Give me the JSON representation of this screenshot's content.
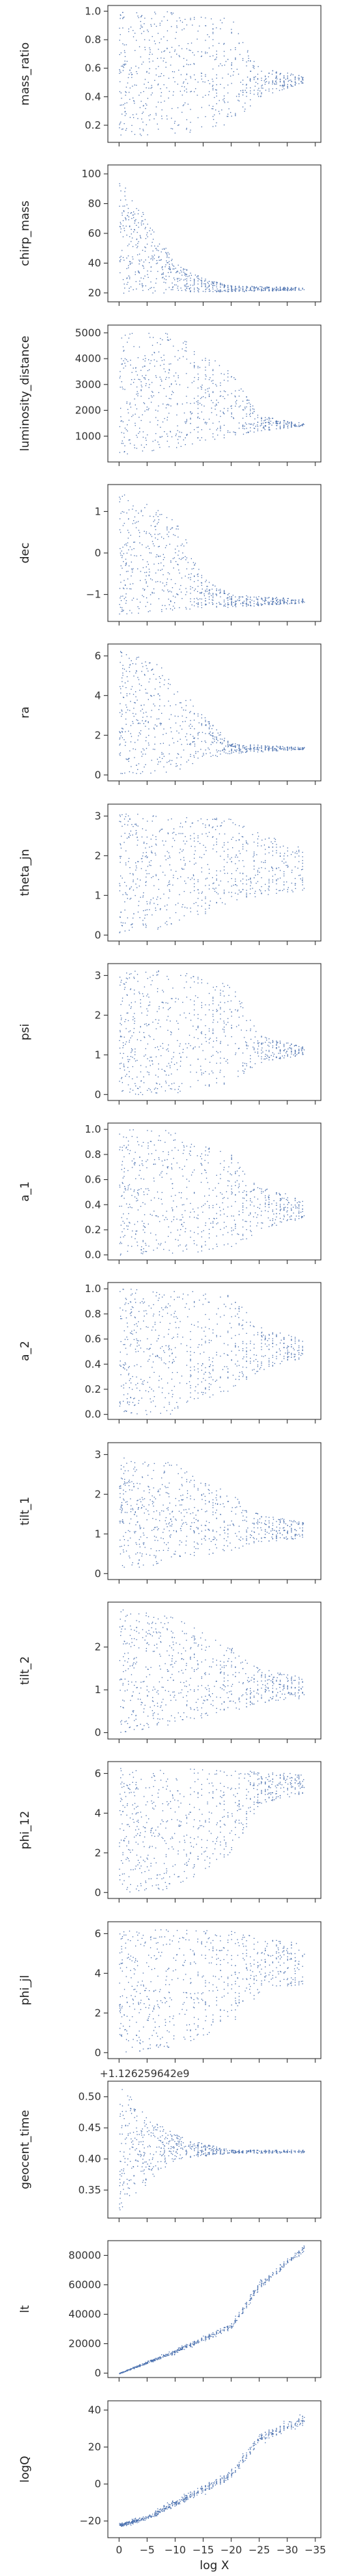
{
  "chart_data": {
    "type": "scatter",
    "shared_x": {
      "label": "log X",
      "ticks": [
        0,
        -5,
        -10,
        -15,
        -20,
        -25,
        -30,
        -35
      ],
      "tick_labels": [
        "0",
        "−5",
        "−10",
        "−15",
        "−20",
        "−25",
        "−30",
        "−35"
      ],
      "xlim": [
        2,
        -36
      ]
    },
    "marker_color": "#4c72b0",
    "axis_color": "#333333",
    "panels": [
      {
        "ylabel": "mass_ratio",
        "ticks": [
          0.2,
          0.4,
          0.6,
          0.8,
          1.0
        ],
        "tick_labels": [
          "0.2",
          "0.4",
          "0.6",
          "0.8",
          "1.0"
        ],
        "ylim": [
          0.08,
          1.04
        ],
        "trend": {
          "x": [
            0,
            -10,
            -20,
            -25,
            -33
          ],
          "lo": [
            0.12,
            0.13,
            0.2,
            0.4,
            0.5
          ],
          "hi": [
            1.0,
            1.0,
            0.95,
            0.6,
            0.55
          ]
        }
      },
      {
        "ylabel": "chirp_mass",
        "ticks": [
          20,
          40,
          60,
          80,
          100
        ],
        "tick_labels": [
          "20",
          "40",
          "60",
          "80",
          "100"
        ],
        "ylim": [
          14,
          106
        ],
        "trend": {
          "x": [
            0,
            -5,
            -10,
            -15,
            -20,
            -33
          ],
          "lo": [
            20,
            20,
            20,
            21,
            21,
            22
          ],
          "hi": [
            100,
            70,
            40,
            30,
            25,
            24
          ]
        }
      },
      {
        "ylabel": "luminosity_distance",
        "ticks": [
          1000,
          2000,
          3000,
          4000,
          5000
        ],
        "tick_labels": [
          "1000",
          "2000",
          "3000",
          "4000",
          "5000"
        ],
        "ylim": [
          0,
          5300
        ],
        "trend": {
          "x": [
            0,
            -10,
            -20,
            -25,
            -33
          ],
          "lo": [
            300,
            500,
            1000,
            1200,
            1400
          ],
          "hi": [
            5000,
            5000,
            3500,
            1800,
            1500
          ]
        }
      },
      {
        "ylabel": "dec",
        "ticks": [
          -1,
          0,
          1
        ],
        "tick_labels": [
          "−1",
          "0",
          "1"
        ],
        "ylim": [
          -1.65,
          1.65
        ],
        "trend": {
          "x": [
            0,
            -10,
            -15,
            -20,
            -33
          ],
          "lo": [
            -1.5,
            -1.4,
            -1.3,
            -1.3,
            -1.2
          ],
          "hi": [
            1.5,
            0.9,
            -0.6,
            -1.0,
            -1.1
          ]
        }
      },
      {
        "ylabel": "ra",
        "ticks": [
          0,
          2,
          4,
          6
        ],
        "tick_labels": [
          "0",
          "2",
          "4",
          "6"
        ],
        "ylim": [
          -0.3,
          6.6
        ],
        "trend": {
          "x": [
            0,
            -8,
            -15,
            -20,
            -33
          ],
          "lo": [
            0,
            0,
            0.8,
            1.1,
            1.3
          ],
          "hi": [
            6.3,
            5.5,
            3.0,
            1.6,
            1.4
          ]
        }
      },
      {
        "ylabel": "theta_jn",
        "ticks": [
          0,
          1,
          2,
          3
        ],
        "tick_labels": [
          "0",
          "1",
          "2",
          "3"
        ],
        "ylim": [
          -0.15,
          3.3
        ],
        "trend": {
          "x": [
            0,
            -10,
            -20,
            -25,
            -33
          ],
          "lo": [
            0.05,
            0.2,
            0.8,
            1.0,
            1.1
          ],
          "hi": [
            3.1,
            3.0,
            3.0,
            2.6,
            2.2
          ]
        }
      },
      {
        "ylabel": "psi",
        "ticks": [
          0,
          1,
          2,
          3
        ],
        "tick_labels": [
          "0",
          "1",
          "2",
          "3"
        ],
        "ylim": [
          -0.15,
          3.3
        ],
        "trend": {
          "x": [
            0,
            -10,
            -20,
            -25,
            -33
          ],
          "lo": [
            0,
            0,
            0.3,
            0.8,
            1.0
          ],
          "hi": [
            3.14,
            3.14,
            2.8,
            1.5,
            1.2
          ]
        }
      },
      {
        "ylabel": "a_1",
        "ticks": [
          0.0,
          0.2,
          0.4,
          0.6,
          0.8,
          1.0
        ],
        "tick_labels": [
          "0.0",
          "0.2",
          "0.4",
          "0.6",
          "0.8",
          "1.0"
        ],
        "ylim": [
          -0.04,
          1.05
        ],
        "trend": {
          "x": [
            0,
            -10,
            -20,
            -25,
            -33
          ],
          "lo": [
            0,
            0,
            0.05,
            0.2,
            0.3
          ],
          "hi": [
            1.0,
            1.0,
            0.8,
            0.55,
            0.45
          ]
        }
      },
      {
        "ylabel": "a_2",
        "ticks": [
          0.0,
          0.2,
          0.4,
          0.6,
          0.8,
          1.0
        ],
        "tick_labels": [
          "0.0",
          "0.2",
          "0.4",
          "0.6",
          "0.8",
          "1.0"
        ],
        "ylim": [
          -0.04,
          1.05
        ],
        "trend": {
          "x": [
            0,
            -10,
            -20,
            -25,
            -33
          ],
          "lo": [
            0,
            0,
            0.2,
            0.35,
            0.45
          ],
          "hi": [
            1.0,
            1.0,
            0.95,
            0.7,
            0.6
          ]
        }
      },
      {
        "ylabel": "tilt_1",
        "ticks": [
          0,
          1,
          2,
          3
        ],
        "tick_labels": [
          "0",
          "1",
          "2",
          "3"
        ],
        "ylim": [
          -0.15,
          3.3
        ],
        "trend": {
          "x": [
            0,
            -10,
            -20,
            -25,
            -33
          ],
          "lo": [
            0.1,
            0.3,
            0.6,
            0.8,
            0.9
          ],
          "hi": [
            3.0,
            2.8,
            2.0,
            1.5,
            1.3
          ]
        }
      },
      {
        "ylabel": "tilt_2",
        "ticks": [
          0,
          1,
          2
        ],
        "tick_labels": [
          "0",
          "1",
          "2"
        ],
        "ylim": [
          -0.15,
          3.05
        ],
        "trend": {
          "x": [
            0,
            -10,
            -20,
            -25,
            -33
          ],
          "lo": [
            0,
            0.2,
            0.5,
            0.7,
            0.8
          ],
          "hi": [
            2.9,
            2.7,
            2.0,
            1.5,
            1.3
          ]
        }
      },
      {
        "ylabel": "phi_12",
        "ticks": [
          0,
          2,
          4,
          6
        ],
        "tick_labels": [
          "0",
          "2",
          "4",
          "6"
        ],
        "ylim": [
          -0.3,
          6.6
        ],
        "trend": {
          "x": [
            0,
            -10,
            -20,
            -25,
            -33
          ],
          "lo": [
            0,
            0.2,
            2.0,
            4.5,
            5.0
          ],
          "hi": [
            6.28,
            6.28,
            6.2,
            6.1,
            6.0
          ]
        }
      },
      {
        "ylabel": "phi_jl",
        "ticks": [
          0,
          2,
          4,
          6
        ],
        "tick_labels": [
          "0",
          "2",
          "4",
          "6"
        ],
        "ylim": [
          -0.3,
          6.6
        ],
        "trend": {
          "x": [
            0,
            -10,
            -20,
            -25,
            -33
          ],
          "lo": [
            0,
            0.2,
            1.5,
            3.0,
            3.5
          ],
          "hi": [
            6.28,
            6.28,
            6.2,
            5.8,
            5.5
          ]
        }
      },
      {
        "ylabel": "geocent_time",
        "offset_text": "+1.126259642e9",
        "ticks": [
          0.35,
          0.4,
          0.45,
          0.5
        ],
        "tick_labels": [
          "0.35",
          "0.40",
          "0.45",
          "0.50"
        ],
        "ylim": [
          0.305,
          0.525
        ],
        "trend": {
          "x": [
            0,
            -5,
            -10,
            -15,
            -20,
            -33
          ],
          "lo": [
            0.315,
            0.36,
            0.4,
            0.405,
            0.41,
            0.41
          ],
          "hi": [
            0.52,
            0.47,
            0.44,
            0.425,
            0.415,
            0.415
          ]
        }
      },
      {
        "ylabel": "lt",
        "ticks": [
          0,
          20000,
          40000,
          60000,
          80000
        ],
        "tick_labels": [
          "0",
          "20000",
          "40000",
          "60000",
          "80000"
        ],
        "ylim": [
          -3000,
          90000
        ],
        "trend": {
          "x": [
            0,
            -10,
            -20,
            -25,
            -33
          ],
          "center": [
            0,
            15000,
            32000,
            60000,
            85000
          ],
          "spread": [
            500,
            3000,
            4000,
            6000,
            4000
          ]
        }
      },
      {
        "ylabel": "logQ",
        "ticks": [
          -20,
          0,
          20,
          40
        ],
        "tick_labels": [
          "−20",
          "0",
          "20",
          "40"
        ],
        "ylim": [
          -29,
          45
        ],
        "trend": {
          "x": [
            0,
            -5,
            -10,
            -20,
            -25,
            -33
          ],
          "center": [
            -22,
            -18,
            -10,
            5,
            25,
            35
          ],
          "spread": [
            2,
            3,
            4,
            5,
            6,
            5
          ]
        }
      }
    ]
  }
}
